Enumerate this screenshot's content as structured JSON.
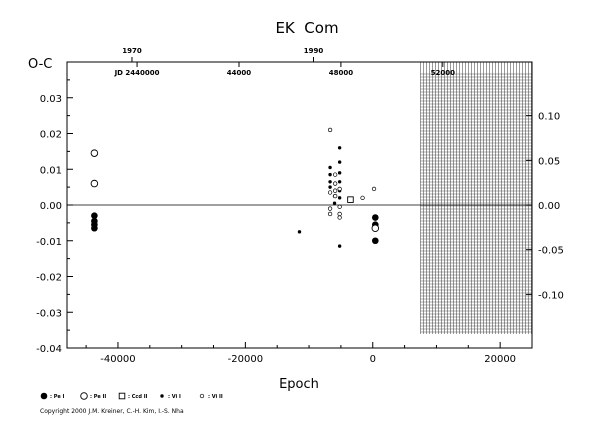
{
  "chart_data": {
    "type": "scatter",
    "title": "EK  Com",
    "xlabel": "Epoch",
    "ylabel": "O-C",
    "xlim": [
      -48000,
      25000
    ],
    "ylim": [
      -0.04,
      0.04
    ],
    "right_ylim": [
      -0.16,
      0.16
    ],
    "x_ticks": [
      -40000,
      -20000,
      0,
      20000
    ],
    "x_tick_labels": [
      "-40000",
      "-20000",
      "0",
      "20000"
    ],
    "y_ticks": [
      -0.04,
      -0.03,
      -0.02,
      -0.01,
      0.0,
      0.01,
      0.02,
      0.03
    ],
    "y_tick_labels": [
      "-0.04",
      "-0.03",
      "-0.02",
      "-0.01",
      "0.00",
      "0.01",
      "0.02",
      "0.03"
    ],
    "right_y_ticks": [
      -0.1,
      -0.05,
      0.0,
      0.05,
      0.1
    ],
    "right_y_tick_labels": [
      "-0.10",
      "-0.05",
      "0.00",
      "0.05",
      "0.10"
    ],
    "year_axis": [
      {
        "label": "1970",
        "epoch": -37800
      },
      {
        "label": "1990",
        "epoch": -9300
      }
    ],
    "jd_axis": [
      {
        "label": "JD 2440000",
        "epoch": -37000
      },
      {
        "label": "44000",
        "epoch": -21000
      },
      {
        "label": "48000",
        "epoch": -5000
      },
      {
        "label": "52000",
        "epoch": 11000
      }
    ],
    "future_start_epoch": 7500,
    "grid": false,
    "series": [
      {
        "name": "Pe I",
        "marker": "filled-circle-large",
        "points": [
          [
            -43700,
            -0.003
          ],
          [
            -43700,
            -0.0045
          ],
          [
            -43700,
            -0.0055
          ],
          [
            -43700,
            -0.0065
          ],
          [
            400,
            -0.0035
          ],
          [
            400,
            -0.0055
          ],
          [
            400,
            -0.01
          ]
        ]
      },
      {
        "name": "Pe II",
        "marker": "open-circle-large",
        "points": [
          [
            -43700,
            0.0145
          ],
          [
            -43700,
            0.006
          ],
          [
            400,
            -0.0065
          ]
        ]
      },
      {
        "name": "Ccd II",
        "marker": "open-square",
        "points": [
          [
            -3500,
            0.0015
          ]
        ]
      },
      {
        "name": "Vi I",
        "marker": "filled-circle-small",
        "points": [
          [
            -11500,
            -0.0075
          ],
          [
            -6700,
            0.0105
          ],
          [
            -6700,
            0.0085
          ],
          [
            -6700,
            0.0065
          ],
          [
            -6700,
            0.005
          ],
          [
            -6000,
            0.0025
          ],
          [
            -6000,
            0.0005
          ],
          [
            -5200,
            0.016
          ],
          [
            -5200,
            0.012
          ],
          [
            -5200,
            0.009
          ],
          [
            -5200,
            0.0065
          ],
          [
            -5200,
            0.004
          ],
          [
            -5200,
            0.002
          ],
          [
            -5200,
            -0.0115
          ]
        ]
      },
      {
        "name": "Vi II",
        "marker": "open-circle-small",
        "points": [
          [
            -6700,
            0.021
          ],
          [
            -6700,
            0.0035
          ],
          [
            -6700,
            -0.001
          ],
          [
            -6700,
            -0.0025
          ],
          [
            -5900,
            0.0085
          ],
          [
            -5900,
            0.006
          ],
          [
            -5900,
            0.004
          ],
          [
            -5900,
            0.0025
          ],
          [
            -5200,
            0.0045
          ],
          [
            -5200,
            -0.0005
          ],
          [
            -5200,
            -0.0025
          ],
          [
            -5200,
            -0.0035
          ],
          [
            -1600,
            0.002
          ],
          [
            200,
            0.0045
          ]
        ]
      }
    ],
    "legend_position": "bottom-left",
    "copyright": "Copyright 2000 J.M. Kreiner, C.-H. Kim, I.-S. Nha"
  }
}
